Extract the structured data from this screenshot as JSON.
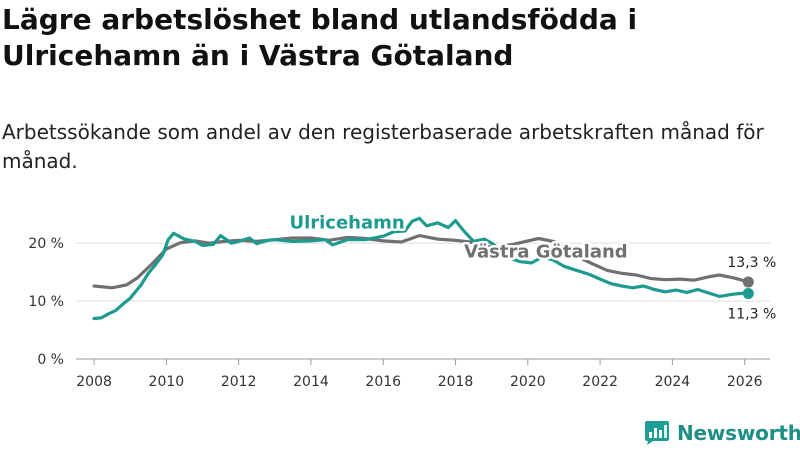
{
  "header": {
    "title": "Lägre arbetslöshet bland utlandsfödda i Ulricehamn än i Västra Götaland",
    "subtitle": "Arbetssökande som andel av den registerbaserade arbetskraften månad för månad."
  },
  "brand": {
    "name": "Newsworthy",
    "icon": "newsworthy-logo-icon",
    "color": "#1f9d92"
  },
  "chart_data": {
    "type": "line",
    "title": "Lägre arbetslöshet bland utlandsfödda i Ulricehamn än i Västra Götaland",
    "subtitle": "Arbetssökande som andel av den registerbaserade arbetskraften månad för månad.",
    "xlabel": "",
    "ylabel": "",
    "xlim": [
      2007.5,
      2026.7
    ],
    "ylim": [
      0,
      24
    ],
    "x_ticks": [
      2008,
      2010,
      2012,
      2014,
      2016,
      2018,
      2020,
      2022,
      2024,
      2026
    ],
    "x_tick_labels": [
      "2008",
      "2010",
      "2012",
      "2014",
      "2016",
      "2018",
      "2020",
      "2022",
      "2024",
      "2026"
    ],
    "y_ticks": [
      0,
      10,
      20
    ],
    "y_tick_labels": [
      "0 %",
      "10 %",
      "20 %"
    ],
    "grid": "horizontal",
    "series": [
      {
        "name": "Västra Götaland",
        "color": "#707070",
        "end_label": "13,3 %",
        "points": [
          [
            2008.0,
            12.6
          ],
          [
            2008.5,
            12.3
          ],
          [
            2008.9,
            12.8
          ],
          [
            2009.2,
            14.0
          ],
          [
            2009.6,
            16.4
          ],
          [
            2010.0,
            19.0
          ],
          [
            2010.4,
            20.1
          ],
          [
            2010.8,
            20.4
          ],
          [
            2011.2,
            20.0
          ],
          [
            2011.6,
            20.3
          ],
          [
            2012.0,
            20.5
          ],
          [
            2012.5,
            20.3
          ],
          [
            2013.0,
            20.6
          ],
          [
            2013.5,
            20.9
          ],
          [
            2014.0,
            20.9
          ],
          [
            2014.5,
            20.5
          ],
          [
            2015.0,
            21.0
          ],
          [
            2015.5,
            20.8
          ],
          [
            2016.0,
            20.4
          ],
          [
            2016.5,
            20.2
          ],
          [
            2017.0,
            21.3
          ],
          [
            2017.5,
            20.7
          ],
          [
            2018.0,
            20.5
          ],
          [
            2018.4,
            20.2
          ],
          [
            2018.8,
            19.5
          ],
          [
            2019.2,
            19.3
          ],
          [
            2019.6,
            19.8
          ],
          [
            2020.0,
            20.4
          ],
          [
            2020.3,
            20.8
          ],
          [
            2020.7,
            20.3
          ],
          [
            2021.0,
            19.5
          ],
          [
            2021.4,
            17.6
          ],
          [
            2021.8,
            16.4
          ],
          [
            2022.2,
            15.3
          ],
          [
            2022.6,
            14.8
          ],
          [
            2023.0,
            14.5
          ],
          [
            2023.4,
            13.9
          ],
          [
            2023.8,
            13.7
          ],
          [
            2024.2,
            13.8
          ],
          [
            2024.6,
            13.6
          ],
          [
            2025.0,
            14.2
          ],
          [
            2025.3,
            14.5
          ],
          [
            2025.7,
            14.0
          ],
          [
            2026.0,
            13.5
          ],
          [
            2026.1,
            13.3
          ]
        ]
      },
      {
        "name": "Ulricehamn",
        "color": "#1d9b90",
        "end_label": "11,3 %",
        "points": [
          [
            2008.0,
            7.0
          ],
          [
            2008.2,
            7.1
          ],
          [
            2008.4,
            7.8
          ],
          [
            2008.6,
            8.4
          ],
          [
            2008.8,
            9.5
          ],
          [
            2009.0,
            10.5
          ],
          [
            2009.3,
            12.8
          ],
          [
            2009.5,
            14.8
          ],
          [
            2009.7,
            16.3
          ],
          [
            2009.9,
            18.0
          ],
          [
            2010.05,
            20.6
          ],
          [
            2010.2,
            21.7
          ],
          [
            2010.5,
            20.7
          ],
          [
            2010.8,
            20.3
          ],
          [
            2011.0,
            19.6
          ],
          [
            2011.3,
            19.8
          ],
          [
            2011.5,
            21.3
          ],
          [
            2011.8,
            20.0
          ],
          [
            2012.0,
            20.3
          ],
          [
            2012.3,
            20.9
          ],
          [
            2012.5,
            19.9
          ],
          [
            2012.8,
            20.5
          ],
          [
            2013.0,
            20.6
          ],
          [
            2013.5,
            20.3
          ],
          [
            2014.0,
            20.4
          ],
          [
            2014.4,
            20.6
          ],
          [
            2014.6,
            19.7
          ],
          [
            2015.0,
            20.6
          ],
          [
            2015.5,
            20.6
          ],
          [
            2016.0,
            21.2
          ],
          [
            2016.3,
            22.0
          ],
          [
            2016.6,
            22.1
          ],
          [
            2016.8,
            23.8
          ],
          [
            2017.0,
            24.3
          ],
          [
            2017.2,
            23.0
          ],
          [
            2017.5,
            23.5
          ],
          [
            2017.8,
            22.7
          ],
          [
            2018.0,
            23.9
          ],
          [
            2018.2,
            22.3
          ],
          [
            2018.5,
            20.3
          ],
          [
            2018.8,
            20.7
          ],
          [
            2019.0,
            20.0
          ],
          [
            2019.3,
            18.6
          ],
          [
            2019.6,
            17.2
          ],
          [
            2019.8,
            16.8
          ],
          [
            2020.1,
            16.6
          ],
          [
            2020.4,
            17.6
          ],
          [
            2020.7,
            17.1
          ],
          [
            2021.0,
            16.0
          ],
          [
            2021.3,
            15.4
          ],
          [
            2021.7,
            14.6
          ],
          [
            2022.0,
            13.8
          ],
          [
            2022.3,
            13.0
          ],
          [
            2022.6,
            12.6
          ],
          [
            2022.9,
            12.3
          ],
          [
            2023.2,
            12.6
          ],
          [
            2023.5,
            12.0
          ],
          [
            2023.8,
            11.6
          ],
          [
            2024.1,
            11.9
          ],
          [
            2024.4,
            11.5
          ],
          [
            2024.7,
            12.0
          ],
          [
            2025.0,
            11.4
          ],
          [
            2025.3,
            10.8
          ],
          [
            2025.7,
            11.2
          ],
          [
            2026.0,
            11.4
          ],
          [
            2026.1,
            11.3
          ]
        ]
      }
    ],
    "annotations": [
      {
        "text": "Ulricehamn",
        "series": "Ulricehamn",
        "x": 2015.0,
        "y": 22.5
      },
      {
        "text": "Västra Götaland",
        "series": "Västra Götaland",
        "x": 2020.5,
        "y": 17.5
      }
    ]
  }
}
